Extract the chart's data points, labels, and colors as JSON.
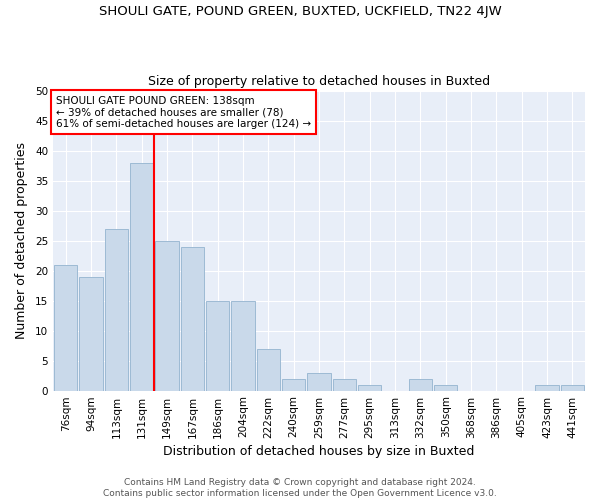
{
  "title": "SHOULI GATE, POUND GREEN, BUXTED, UCKFIELD, TN22 4JW",
  "subtitle": "Size of property relative to detached houses in Buxted",
  "xlabel": "Distribution of detached houses by size in Buxted",
  "ylabel": "Number of detached properties",
  "categories": [
    "76sqm",
    "94sqm",
    "113sqm",
    "131sqm",
    "149sqm",
    "167sqm",
    "186sqm",
    "204sqm",
    "222sqm",
    "240sqm",
    "259sqm",
    "277sqm",
    "295sqm",
    "313sqm",
    "332sqm",
    "350sqm",
    "368sqm",
    "386sqm",
    "405sqm",
    "423sqm",
    "441sqm"
  ],
  "values": [
    21,
    19,
    27,
    38,
    25,
    24,
    15,
    15,
    7,
    2,
    3,
    2,
    1,
    0,
    2,
    1,
    0,
    0,
    0,
    1,
    1
  ],
  "bar_color": "#c9d9ea",
  "bar_edge_color": "#9dbad4",
  "red_line_x": 3.5,
  "annotation_line1": "SHOULI GATE POUND GREEN: 138sqm",
  "annotation_line2": "← 39% of detached houses are smaller (78)",
  "annotation_line3": "61% of semi-detached houses are larger (124) →",
  "annotation_box_color": "white",
  "annotation_box_edge_color": "red",
  "ylim": [
    0,
    50
  ],
  "yticks": [
    0,
    5,
    10,
    15,
    20,
    25,
    30,
    35,
    40,
    45,
    50
  ],
  "footer1": "Contains HM Land Registry data © Crown copyright and database right 2024.",
  "footer2": "Contains public sector information licensed under the Open Government Licence v3.0.",
  "fig_bg_color": "#ffffff",
  "plot_bg_color": "#e8eef8",
  "grid_color": "#ffffff",
  "title_fontsize": 9.5,
  "subtitle_fontsize": 9,
  "axis_label_fontsize": 9,
  "tick_fontsize": 7.5,
  "footer_fontsize": 6.5,
  "annotation_fontsize": 7.5
}
